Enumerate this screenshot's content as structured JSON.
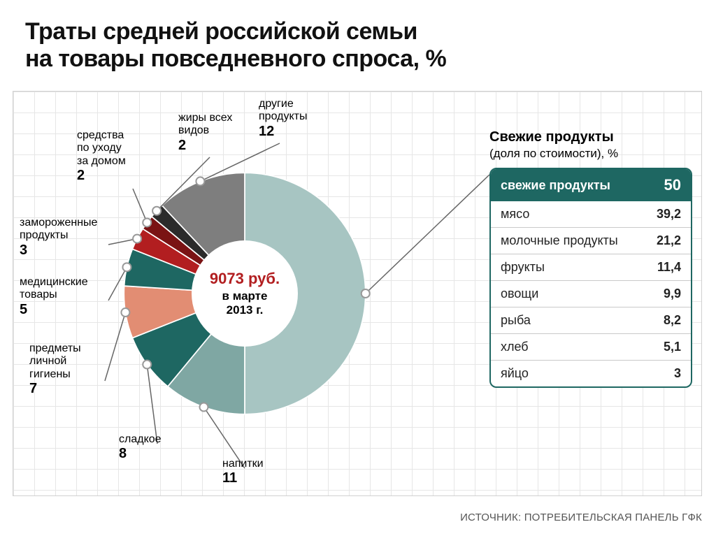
{
  "title_line1": "Траты средней российской семьи",
  "title_line2": "на товары повседневного спроса, %",
  "center": {
    "value": "9073 руб.",
    "line1": "в марте",
    "line2": "2013 г."
  },
  "donut": {
    "type": "pie",
    "inner_radius_pct": 40,
    "outer_radius_pct": 100,
    "start_angle_deg": 0,
    "background_color": "#ffffff",
    "slices": [
      {
        "label": "Свежие продукты",
        "value": 50,
        "color": "#a7c5c2"
      },
      {
        "label": "напитки",
        "value": 11,
        "color": "#7fa7a3"
      },
      {
        "label": "сладкое",
        "value": 8,
        "color": "#1e6762"
      },
      {
        "label": "предметы личной гигиены",
        "value": 7,
        "color": "#e28d73"
      },
      {
        "label": "медицинские товары",
        "value": 5,
        "color": "#1e6762"
      },
      {
        "label": "замороженные продукты",
        "value": 3,
        "color": "#b21e20"
      },
      {
        "label": "средства по уходу за домом",
        "value": 2,
        "color": "#7a1314"
      },
      {
        "label": "жиры всех видов",
        "value": 2,
        "color": "#2b2b2b"
      },
      {
        "label": "другие продукты",
        "value": 12,
        "color": "#7e7e7e"
      }
    ]
  },
  "callouts": {
    "other": {
      "label": "другие\nпродукты",
      "value": "12"
    },
    "fats": {
      "label": "жиры всех\nвидов",
      "value": "2"
    },
    "home": {
      "label": "средства\nпо уходу\nза домом",
      "value": "2"
    },
    "frozen": {
      "label": "замороженные\nпродукты",
      "value": "3"
    },
    "med": {
      "label": "медицинские\nтовары",
      "value": "5"
    },
    "hygiene": {
      "label": "предметы\nличной\nгигиены",
      "value": "7"
    },
    "sweet": {
      "label": "сладкое",
      "value": "8"
    },
    "drinks": {
      "label": "напитки",
      "value": "11"
    }
  },
  "breakdown": {
    "title_bold": "Свежие продукты",
    "title_sub": "(доля по стоимости), %",
    "header_label": "свежие продукты",
    "header_value": "50",
    "rows": [
      {
        "label": "мясо",
        "value": "39,2"
      },
      {
        "label": "молочные продукты",
        "value": "21,2"
      },
      {
        "label": "фрукты",
        "value": "11,4"
      },
      {
        "label": "овощи",
        "value": "9,9"
      },
      {
        "label": "рыба",
        "value": "8,2"
      },
      {
        "label": "хлеб",
        "value": "5,1"
      },
      {
        "label": "яйцо",
        "value": "3"
      }
    ],
    "border_color": "#1e6762",
    "header_bg": "#1e6762",
    "header_text_color": "#ffffff"
  },
  "source": "ИСТОЧНИК: ПОТРЕБИТЕЛЬСКАЯ ПАНЕЛЬ ГФК"
}
